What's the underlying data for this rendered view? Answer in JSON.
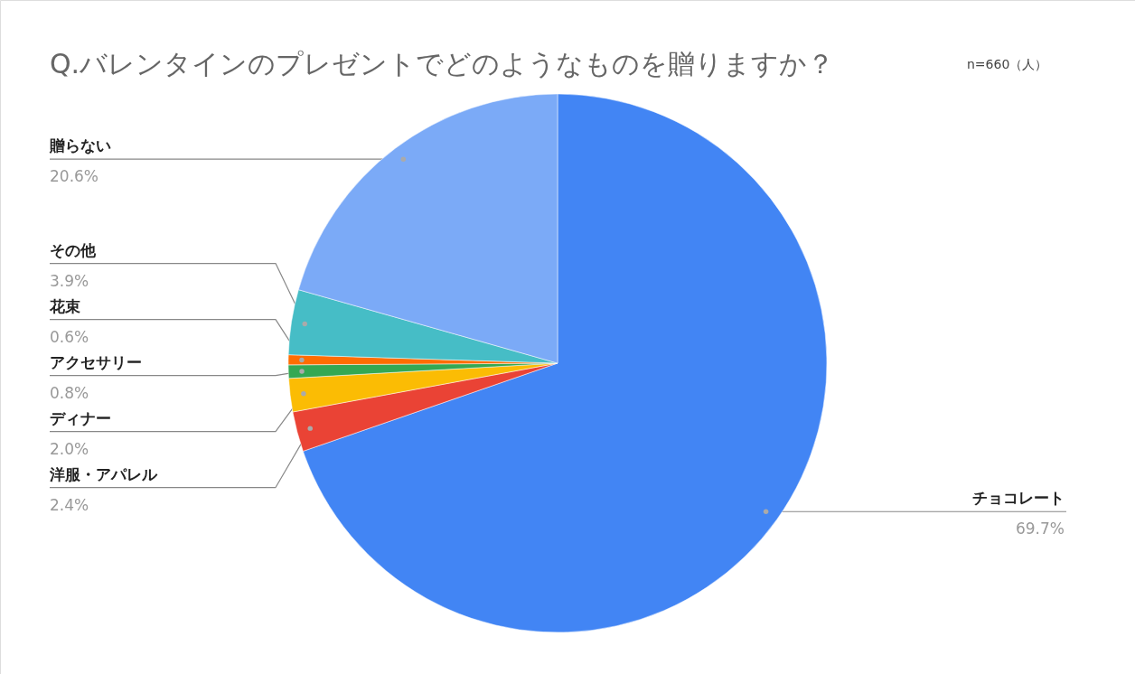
{
  "chart_data": {
    "type": "pie",
    "title": "Q.バレンタインのプレゼントでどのようなものを贈りますか？",
    "subtitle": "n=660（人）",
    "categories": [
      "チョコレート",
      "洋服・アパレル",
      "ディナー",
      "アクセサリー",
      "花束",
      "その他",
      "贈らない"
    ],
    "values": [
      69.7,
      2.4,
      2.0,
      0.8,
      0.6,
      3.9,
      20.6
    ],
    "colors": [
      "#4285f4",
      "#ea4335",
      "#fbbc04",
      "#34a853",
      "#ff6d01",
      "#46bdc6",
      "#7baaf7"
    ],
    "value_labels": [
      "69.7%",
      "2.4%",
      "2.0%",
      "0.8%",
      "0.6%",
      "3.9%",
      "20.6%"
    ]
  }
}
